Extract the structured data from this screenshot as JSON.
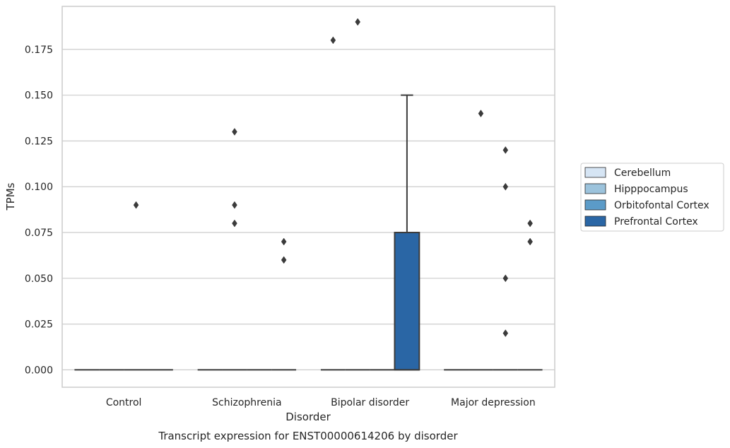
{
  "chart_data": {
    "type": "box",
    "caption": "Transcript expression for ENST00000614206 by disorder",
    "xlabel": "Disorder",
    "ylabel": "TPMs",
    "ylim": [
      -0.0095,
      0.1985
    ],
    "yticks": [
      "0.000",
      "0.025",
      "0.050",
      "0.075",
      "0.100",
      "0.125",
      "0.150",
      "0.175"
    ],
    "categories": [
      "Control",
      "Schizophrenia",
      "Bipolar disorder",
      "Major depression"
    ],
    "grid": "horizontal",
    "legend_position": "right",
    "series": [
      {
        "name": "Cerebellum",
        "color": "#d6e5f4",
        "boxes": [
          {
            "q1": 0,
            "median": 0,
            "q3": 0,
            "whisker_low": 0,
            "whisker_high": 0,
            "outliers": []
          },
          {
            "q1": 0,
            "median": 0,
            "q3": 0,
            "whisker_low": 0,
            "whisker_high": 0,
            "outliers": []
          },
          {
            "q1": 0,
            "median": 0,
            "q3": 0,
            "whisker_low": 0,
            "whisker_high": 0,
            "outliers": [
              0.18
            ]
          },
          {
            "q1": 0,
            "median": 0,
            "q3": 0,
            "whisker_low": 0,
            "whisker_high": 0,
            "outliers": []
          }
        ]
      },
      {
        "name": "Hipppocampus",
        "color": "#9cc3dc",
        "boxes": [
          {
            "q1": 0,
            "median": 0,
            "q3": 0,
            "whisker_low": 0,
            "whisker_high": 0,
            "outliers": []
          },
          {
            "q1": 0,
            "median": 0,
            "q3": 0,
            "whisker_low": 0,
            "whisker_high": 0,
            "outliers": [
              0.13,
              0.09,
              0.08
            ]
          },
          {
            "q1": 0,
            "median": 0,
            "q3": 0,
            "whisker_low": 0,
            "whisker_high": 0,
            "outliers": [
              0.19
            ]
          },
          {
            "q1": 0,
            "median": 0,
            "q3": 0,
            "whisker_low": 0,
            "whisker_high": 0,
            "outliers": [
              0.14
            ]
          }
        ]
      },
      {
        "name": "Orbitofontal Cortex",
        "color": "#5b9bc8",
        "boxes": [
          {
            "q1": 0,
            "median": 0,
            "q3": 0,
            "whisker_low": 0,
            "whisker_high": 0,
            "outliers": [
              0.09
            ]
          },
          {
            "q1": 0,
            "median": 0,
            "q3": 0,
            "whisker_low": 0,
            "whisker_high": 0,
            "outliers": []
          },
          {
            "q1": 0,
            "median": 0,
            "q3": 0,
            "whisker_low": 0,
            "whisker_high": 0,
            "outliers": []
          },
          {
            "q1": 0,
            "median": 0,
            "q3": 0,
            "whisker_low": 0,
            "whisker_high": 0,
            "outliers": [
              0.12,
              0.1,
              0.05,
              0.02
            ]
          }
        ]
      },
      {
        "name": "Prefrontal Cortex",
        "color": "#2a66a5",
        "boxes": [
          {
            "q1": 0,
            "median": 0,
            "q3": 0,
            "whisker_low": 0,
            "whisker_high": 0,
            "outliers": []
          },
          {
            "q1": 0,
            "median": 0,
            "q3": 0,
            "whisker_low": 0,
            "whisker_high": 0,
            "outliers": [
              0.07,
              0.06
            ]
          },
          {
            "q1": 0,
            "median": 0,
            "q3": 0.075,
            "whisker_low": 0,
            "whisker_high": 0.15,
            "outliers": []
          },
          {
            "q1": 0,
            "median": 0,
            "q3": 0,
            "whisker_low": 0,
            "whisker_high": 0,
            "outliers": [
              0.08,
              0.07
            ]
          }
        ]
      }
    ]
  }
}
